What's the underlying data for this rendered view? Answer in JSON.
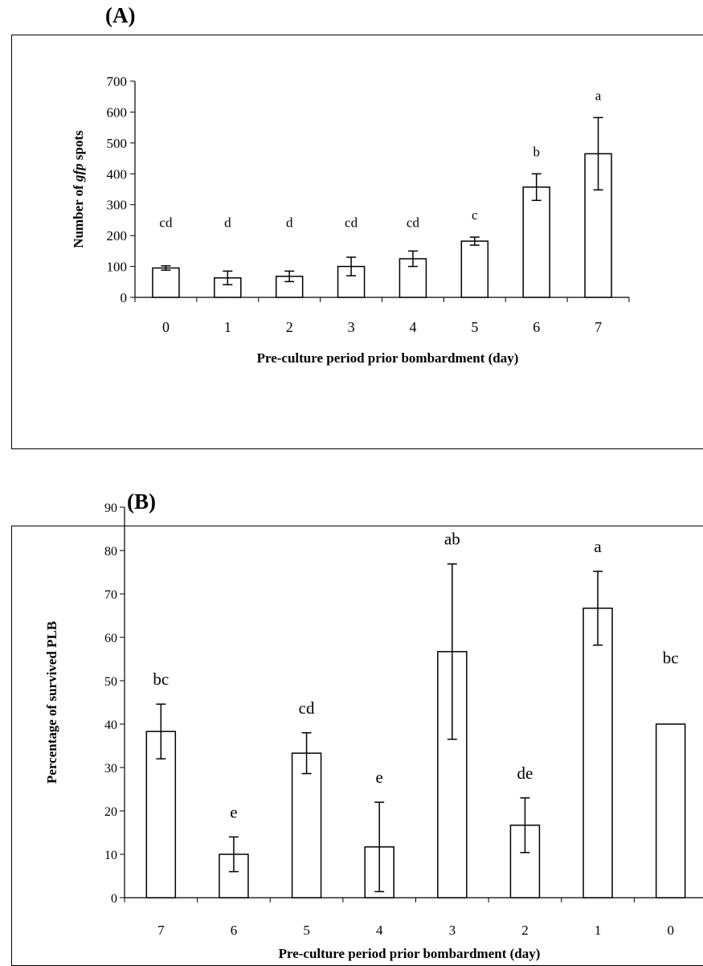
{
  "chart_data": [
    {
      "panel": "(A)",
      "type": "bar",
      "categories": [
        "0",
        "1",
        "2",
        "3",
        "4",
        "5",
        "6",
        "7"
      ],
      "values": [
        95,
        63,
        68,
        100,
        125,
        182,
        357,
        465
      ],
      "errors": [
        7,
        22,
        17,
        30,
        25,
        13,
        43,
        117
      ],
      "annotations": [
        "cd",
        "d",
        "d",
        "cd",
        "cd",
        "c",
        "b",
        "a"
      ],
      "xlabel": "Pre-culture period prior bombardment (day)",
      "ylabel_parts": [
        "Number  of ",
        "gfp",
        "  spots"
      ],
      "ylim": [
        0,
        700
      ],
      "yticks": [
        "0",
        "100",
        "200",
        "300",
        "400",
        "500",
        "600",
        "700"
      ],
      "grid": false,
      "legend": "none"
    },
    {
      "panel": "(B)",
      "type": "bar",
      "categories": [
        "7",
        "6",
        "5",
        "4",
        "3",
        "2",
        "1",
        "0"
      ],
      "values": [
        38.3,
        10,
        33.3,
        11.7,
        56.7,
        16.7,
        66.7,
        40
      ],
      "errors": [
        6.3,
        4,
        4.7,
        10.3,
        20.2,
        6.3,
        8.5,
        0
      ],
      "annotations": [
        "bc",
        "e",
        "cd",
        "e",
        "ab",
        "de",
        "a",
        "bc"
      ],
      "xlabel": "Pre-culture period prior bombardment (day)",
      "ylabel": "Percentage of survived PLB",
      "ylim": [
        0,
        90
      ],
      "yticks": [
        "0",
        "10",
        "20",
        "30",
        "40",
        "50",
        "60",
        "70",
        "80",
        "90"
      ],
      "grid": false,
      "legend": "none"
    }
  ]
}
